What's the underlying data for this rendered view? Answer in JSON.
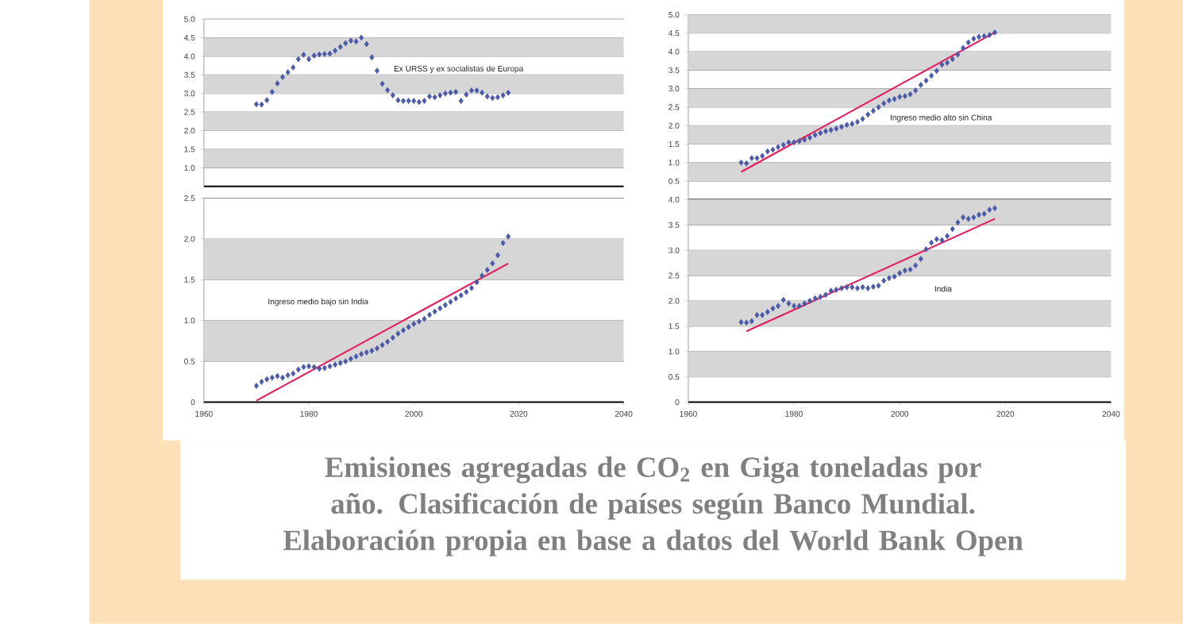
{
  "chart_data": [
    {
      "type": "scatter",
      "x": [
        1970,
        1971,
        1972,
        1973,
        1974,
        1975,
        1976,
        1977,
        1978,
        1979,
        1980,
        1981,
        1982,
        1983,
        1984,
        1985,
        1986,
        1987,
        1988,
        1989,
        1990,
        1991,
        1992,
        1993,
        1994,
        1995,
        1996,
        1997,
        1998,
        1999,
        2000,
        2001,
        2002,
        2003,
        2004,
        2005,
        2006,
        2007,
        2008,
        2009,
        2010,
        2011,
        2012,
        2013,
        2014,
        2015,
        2016,
        2017,
        2018
      ],
      "xlim": [
        1960,
        2040
      ],
      "ylim": [
        0.5,
        5
      ],
      "yticks": [
        {
          "value": 1,
          "label": "1.0"
        },
        {
          "value": 1.5,
          "label": "1.5"
        },
        {
          "value": 2,
          "label": "2.0"
        },
        {
          "value": 2.5,
          "label": "2.5"
        },
        {
          "value": 3,
          "label": "3.0"
        },
        {
          "value": 3.5,
          "label": "3.5"
        },
        {
          "value": 4,
          "label": "4.0"
        },
        {
          "value": 4.5,
          "label": "4.5"
        },
        {
          "value": 5,
          "label": "5.0"
        }
      ],
      "tick_labels": "y",
      "grid": "y",
      "bands": [
        {
          "axis": "y",
          "from": 1,
          "to": 1.5,
          "color": "#d6d6d6"
        },
        {
          "axis": "y",
          "from": 2,
          "to": 2.5,
          "color": "#d6d6d6"
        },
        {
          "axis": "y",
          "from": 3,
          "to": 3.5,
          "color": "#d6d6d6"
        },
        {
          "axis": "y",
          "from": 4,
          "to": 4.5,
          "color": "#d6d6d6"
        }
      ],
      "series": [
        {
          "name": "Ex URSS y ex socialistas de Europa",
          "color": "#4a5aa8",
          "marker": "diamond",
          "values": [
            2.71,
            2.7,
            2.82,
            3.04,
            3.27,
            3.44,
            3.57,
            3.7,
            3.92,
            4.04,
            3.92,
            4.02,
            4.05,
            4.06,
            4.07,
            4.15,
            4.25,
            4.35,
            4.42,
            4.4,
            4.5,
            4.33,
            3.97,
            3.61,
            3.26,
            3.09,
            2.95,
            2.82,
            2.8,
            2.8,
            2.8,
            2.77,
            2.8,
            2.92,
            2.9,
            2.95,
            3.0,
            3.02,
            3.04,
            2.8,
            2.97,
            3.08,
            3.08,
            3.02,
            2.92,
            2.88,
            2.9,
            2.95,
            3.02
          ]
        }
      ]
    },
    {
      "type": "scatter",
      "x": [
        1970,
        1971,
        1972,
        1973,
        1974,
        1975,
        1976,
        1977,
        1978,
        1979,
        1980,
        1981,
        1982,
        1983,
        1984,
        1985,
        1986,
        1987,
        1988,
        1989,
        1990,
        1991,
        1992,
        1993,
        1994,
        1995,
        1996,
        1997,
        1998,
        1999,
        2000,
        2001,
        2002,
        2003,
        2004,
        2005,
        2006,
        2007,
        2008,
        2009,
        2010,
        2011,
        2012,
        2013,
        2014,
        2015,
        2016,
        2017,
        2018
      ],
      "xlim": [
        1960,
        2040
      ],
      "ylim": [
        0,
        5
      ],
      "yticks": [
        {
          "value": 0.5,
          "label": "0.5"
        },
        {
          "value": 1,
          "label": "1.0"
        },
        {
          "value": 1.5,
          "label": "1.5"
        },
        {
          "value": 2,
          "label": "2.0"
        },
        {
          "value": 2.5,
          "label": "2.5"
        },
        {
          "value": 3,
          "label": "3.0"
        },
        {
          "value": 3.5,
          "label": "3.5"
        },
        {
          "value": 4,
          "label": "4.0"
        },
        {
          "value": 4.5,
          "label": "4.5"
        },
        {
          "value": 5,
          "label": "5.0"
        }
      ],
      "tick_labels": "y",
      "grid": "y",
      "bands": [
        {
          "axis": "y",
          "from": 0.5,
          "to": 1,
          "color": "#d6d6d6"
        },
        {
          "axis": "y",
          "from": 1.5,
          "to": 2,
          "color": "#d6d6d6"
        },
        {
          "axis": "y",
          "from": 2.5,
          "to": 3,
          "color": "#d6d6d6"
        },
        {
          "axis": "y",
          "from": 3.5,
          "to": 4,
          "color": "#d6d6d6"
        },
        {
          "axis": "y",
          "from": 4.5,
          "to": 5,
          "color": "#d6d6d6"
        }
      ],
      "series": [
        {
          "name": "Ingreso medio alto sin China",
          "color": "#4a5aa8",
          "marker": "diamond",
          "values": [
            1.0,
            0.98,
            1.12,
            1.12,
            1.18,
            1.3,
            1.35,
            1.42,
            1.48,
            1.55,
            1.55,
            1.58,
            1.62,
            1.68,
            1.75,
            1.8,
            1.85,
            1.88,
            1.92,
            1.97,
            2.02,
            2.05,
            2.1,
            2.18,
            2.3,
            2.4,
            2.5,
            2.6,
            2.68,
            2.72,
            2.78,
            2.8,
            2.85,
            2.95,
            3.1,
            3.22,
            3.35,
            3.48,
            3.65,
            3.7,
            3.8,
            3.92,
            4.1,
            4.25,
            4.35,
            4.4,
            4.42,
            4.45,
            4.52
          ]
        },
        {
          "type": "line",
          "color": "#e8185a",
          "x": [
            1970,
            2018
          ],
          "values": [
            0.75,
            4.52
          ]
        }
      ]
    },
    {
      "type": "scatter",
      "x": [
        1970,
        1971,
        1972,
        1973,
        1974,
        1975,
        1976,
        1977,
        1978,
        1979,
        1980,
        1981,
        1982,
        1983,
        1984,
        1985,
        1986,
        1987,
        1988,
        1989,
        1990,
        1991,
        1992,
        1993,
        1994,
        1995,
        1996,
        1997,
        1998,
        1999,
        2000,
        2001,
        2002,
        2003,
        2004,
        2005,
        2006,
        2007,
        2008,
        2009,
        2010,
        2011,
        2012,
        2013,
        2014,
        2015,
        2016,
        2017,
        2018
      ],
      "xlim": [
        1960,
        2040
      ],
      "xticks": [
        1960,
        1980,
        2000,
        2020,
        2040
      ],
      "ylim": [
        0,
        2.5
      ],
      "yticks": [
        {
          "value": 0,
          "label": "0"
        },
        {
          "value": 0.5,
          "label": "0.5"
        },
        {
          "value": 1,
          "label": "1.0"
        },
        {
          "value": 1.5,
          "label": "1.5"
        },
        {
          "value": 2,
          "label": "2.0"
        },
        {
          "value": 2.5,
          "label": "2.5"
        }
      ],
      "grid": "y",
      "bands": [
        {
          "axis": "y",
          "from": 0.5,
          "to": 1,
          "color": "#d6d6d6"
        },
        {
          "axis": "y",
          "from": 1.5,
          "to": 2,
          "color": "#d6d6d6"
        }
      ],
      "series": [
        {
          "name": "Ingreso medio bajo sin India",
          "color": "#4a5aa8",
          "marker": "diamond",
          "values": [
            0.2,
            0.25,
            0.28,
            0.3,
            0.32,
            0.3,
            0.33,
            0.35,
            0.4,
            0.43,
            0.44,
            0.43,
            0.41,
            0.42,
            0.44,
            0.46,
            0.48,
            0.5,
            0.53,
            0.56,
            0.59,
            0.61,
            0.63,
            0.66,
            0.7,
            0.74,
            0.79,
            0.84,
            0.88,
            0.92,
            0.96,
            0.99,
            1.02,
            1.07,
            1.11,
            1.15,
            1.19,
            1.23,
            1.27,
            1.31,
            1.35,
            1.4,
            1.47,
            1.55,
            1.62,
            1.7,
            1.8,
            1.95,
            2.03
          ]
        },
        {
          "type": "line",
          "color": "#e8185a",
          "x": [
            1970,
            2018
          ],
          "values": [
            0.02,
            1.7
          ]
        }
      ]
    },
    {
      "type": "scatter",
      "x": [
        1970,
        1971,
        1972,
        1973,
        1974,
        1975,
        1976,
        1977,
        1978,
        1979,
        1980,
        1981,
        1982,
        1983,
        1984,
        1985,
        1986,
        1987,
        1988,
        1989,
        1990,
        1991,
        1992,
        1993,
        1994,
        1995,
        1996,
        1997,
        1998,
        1999,
        2000,
        2001,
        2002,
        2003,
        2004,
        2005,
        2006,
        2007,
        2008,
        2009,
        2010,
        2011,
        2012,
        2013,
        2014,
        2015,
        2016,
        2017,
        2018
      ],
      "xlim": [
        1960,
        2040
      ],
      "xticks": [
        1960,
        1980,
        2000,
        2020,
        2040
      ],
      "ylim": [
        0,
        4
      ],
      "yticks": [
        {
          "value": 0,
          "label": "0"
        },
        {
          "value": 0.5,
          "label": "0.5"
        },
        {
          "value": 1,
          "label": "1.0"
        },
        {
          "value": 1.5,
          "label": "1.5"
        },
        {
          "value": 2,
          "label": "2.0"
        },
        {
          "value": 2.5,
          "label": "2.5"
        },
        {
          "value": 3,
          "label": "3.0"
        },
        {
          "value": 3.5,
          "label": "3.5"
        },
        {
          "value": 4,
          "label": "4.0"
        }
      ],
      "grid": "y",
      "bands": [
        {
          "axis": "y",
          "from": 0.5,
          "to": 1,
          "color": "#d6d6d6"
        },
        {
          "axis": "y",
          "from": 1.5,
          "to": 2,
          "color": "#d6d6d6"
        },
        {
          "axis": "y",
          "from": 2.5,
          "to": 3,
          "color": "#d6d6d6"
        },
        {
          "axis": "y",
          "from": 3.5,
          "to": 4,
          "color": "#d6d6d6"
        }
      ],
      "series": [
        {
          "name": "India",
          "color": "#4a5aa8",
          "marker": "diamond",
          "values": [
            1.58,
            1.57,
            1.6,
            1.72,
            1.72,
            1.78,
            1.85,
            1.9,
            2.02,
            1.95,
            1.9,
            1.9,
            1.95,
            2.0,
            2.05,
            2.08,
            2.12,
            2.2,
            2.22,
            2.25,
            2.27,
            2.27,
            2.25,
            2.27,
            2.25,
            2.28,
            2.3,
            2.4,
            2.45,
            2.48,
            2.55,
            2.6,
            2.62,
            2.7,
            2.83,
            3.02,
            3.15,
            3.22,
            3.2,
            3.28,
            3.42,
            3.55,
            3.65,
            3.62,
            3.65,
            3.7,
            3.72,
            3.8,
            3.83
          ]
        },
        {
          "type": "line",
          "color": "#e8185a",
          "x": [
            1971,
            2018
          ],
          "values": [
            1.4,
            3.62
          ]
        }
      ]
    },
    {
      "type": "other",
      "title": "Emisiones agregadas de CO$_{2}$ en Giga toneladas por año. Clasificación de países según Banco Mundial. Elaboración propia en base a datos del World Bank Open"
    }
  ]
}
